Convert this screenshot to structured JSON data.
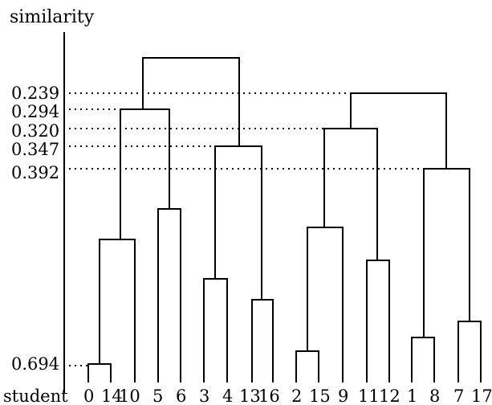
{
  "diagram": {
    "y_axis_label": "similarity",
    "x_axis_label": "student",
    "similarity_ticks": [
      "0.239",
      "0.294",
      "0.320",
      "0.347",
      "0.392",
      "0.694"
    ],
    "leaves": [
      "0",
      "14",
      "10",
      "5",
      "6",
      "3",
      "4",
      "13",
      "16",
      "2",
      "15",
      "9",
      "11",
      "12",
      "1",
      "8",
      "7",
      "17"
    ]
  }
}
